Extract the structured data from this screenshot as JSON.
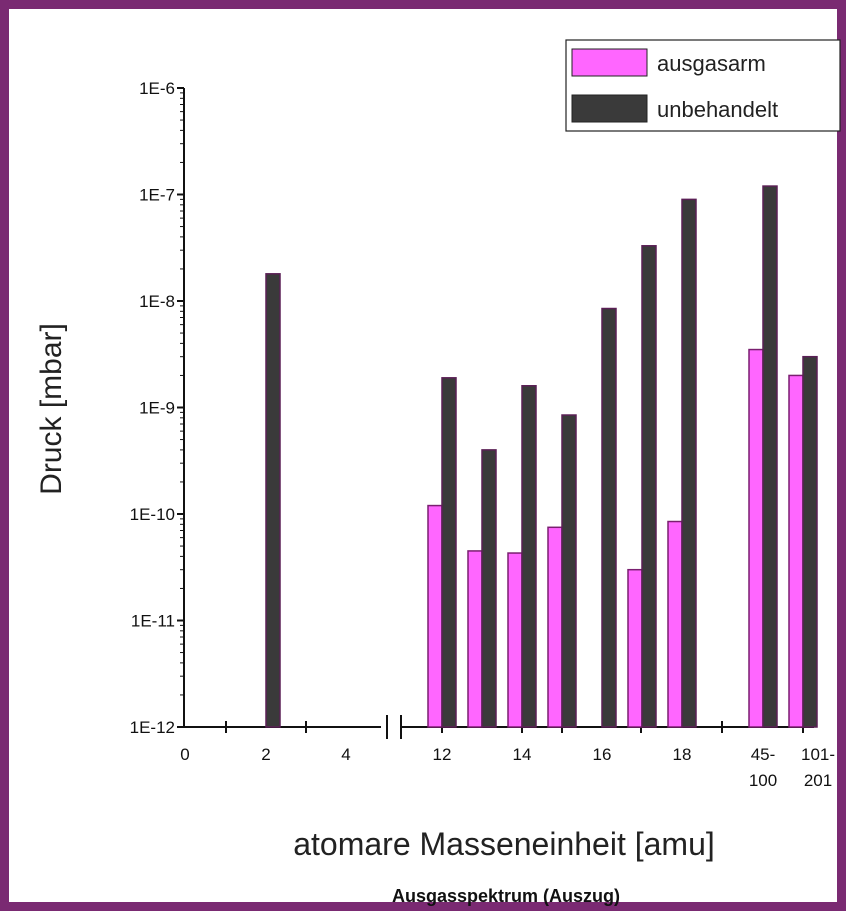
{
  "chart_data": {
    "type": "bar",
    "subtitle": "Ausgasspektrum (Auszug)",
    "xlabel": "atomare Masseneinheit [amu]",
    "ylabel": "Druck [mbar]",
    "y_scale": "log",
    "ylim": [
      1e-12,
      1e-06
    ],
    "y_ticks": [
      "1E-12",
      "1E-11",
      "1E-10",
      "1E-9",
      "1E-8",
      "1E-7",
      "1E-6"
    ],
    "x_tick_labels": [
      "0",
      "2",
      "4",
      "12",
      "14",
      "16",
      "18",
      "45-\n100",
      "101-\n201"
    ],
    "axis_break": "between 4 and 12",
    "categories": [
      "2",
      "12",
      "13",
      "14",
      "15",
      "16",
      "17",
      "18",
      "45-100",
      "101-201"
    ],
    "series": [
      {
        "name": "ausgasarm",
        "color": "#ff66ff",
        "values": [
          null,
          1.2e-10,
          4.5e-11,
          4.3e-11,
          7.5e-11,
          null,
          3e-11,
          8.5e-11,
          3.5e-09,
          2e-09
        ]
      },
      {
        "name": "unbehandelt",
        "color": "#3a3a3a",
        "values": [
          1.8e-08,
          1.9e-09,
          4e-10,
          1.6e-09,
          8.5e-10,
          8.5e-09,
          3.3e-08,
          9e-08,
          1.2e-07,
          3e-09
        ]
      }
    ],
    "legend": {
      "position": "top-right",
      "entries": [
        "ausgasarm",
        "unbehandelt"
      ]
    },
    "grid": false
  }
}
